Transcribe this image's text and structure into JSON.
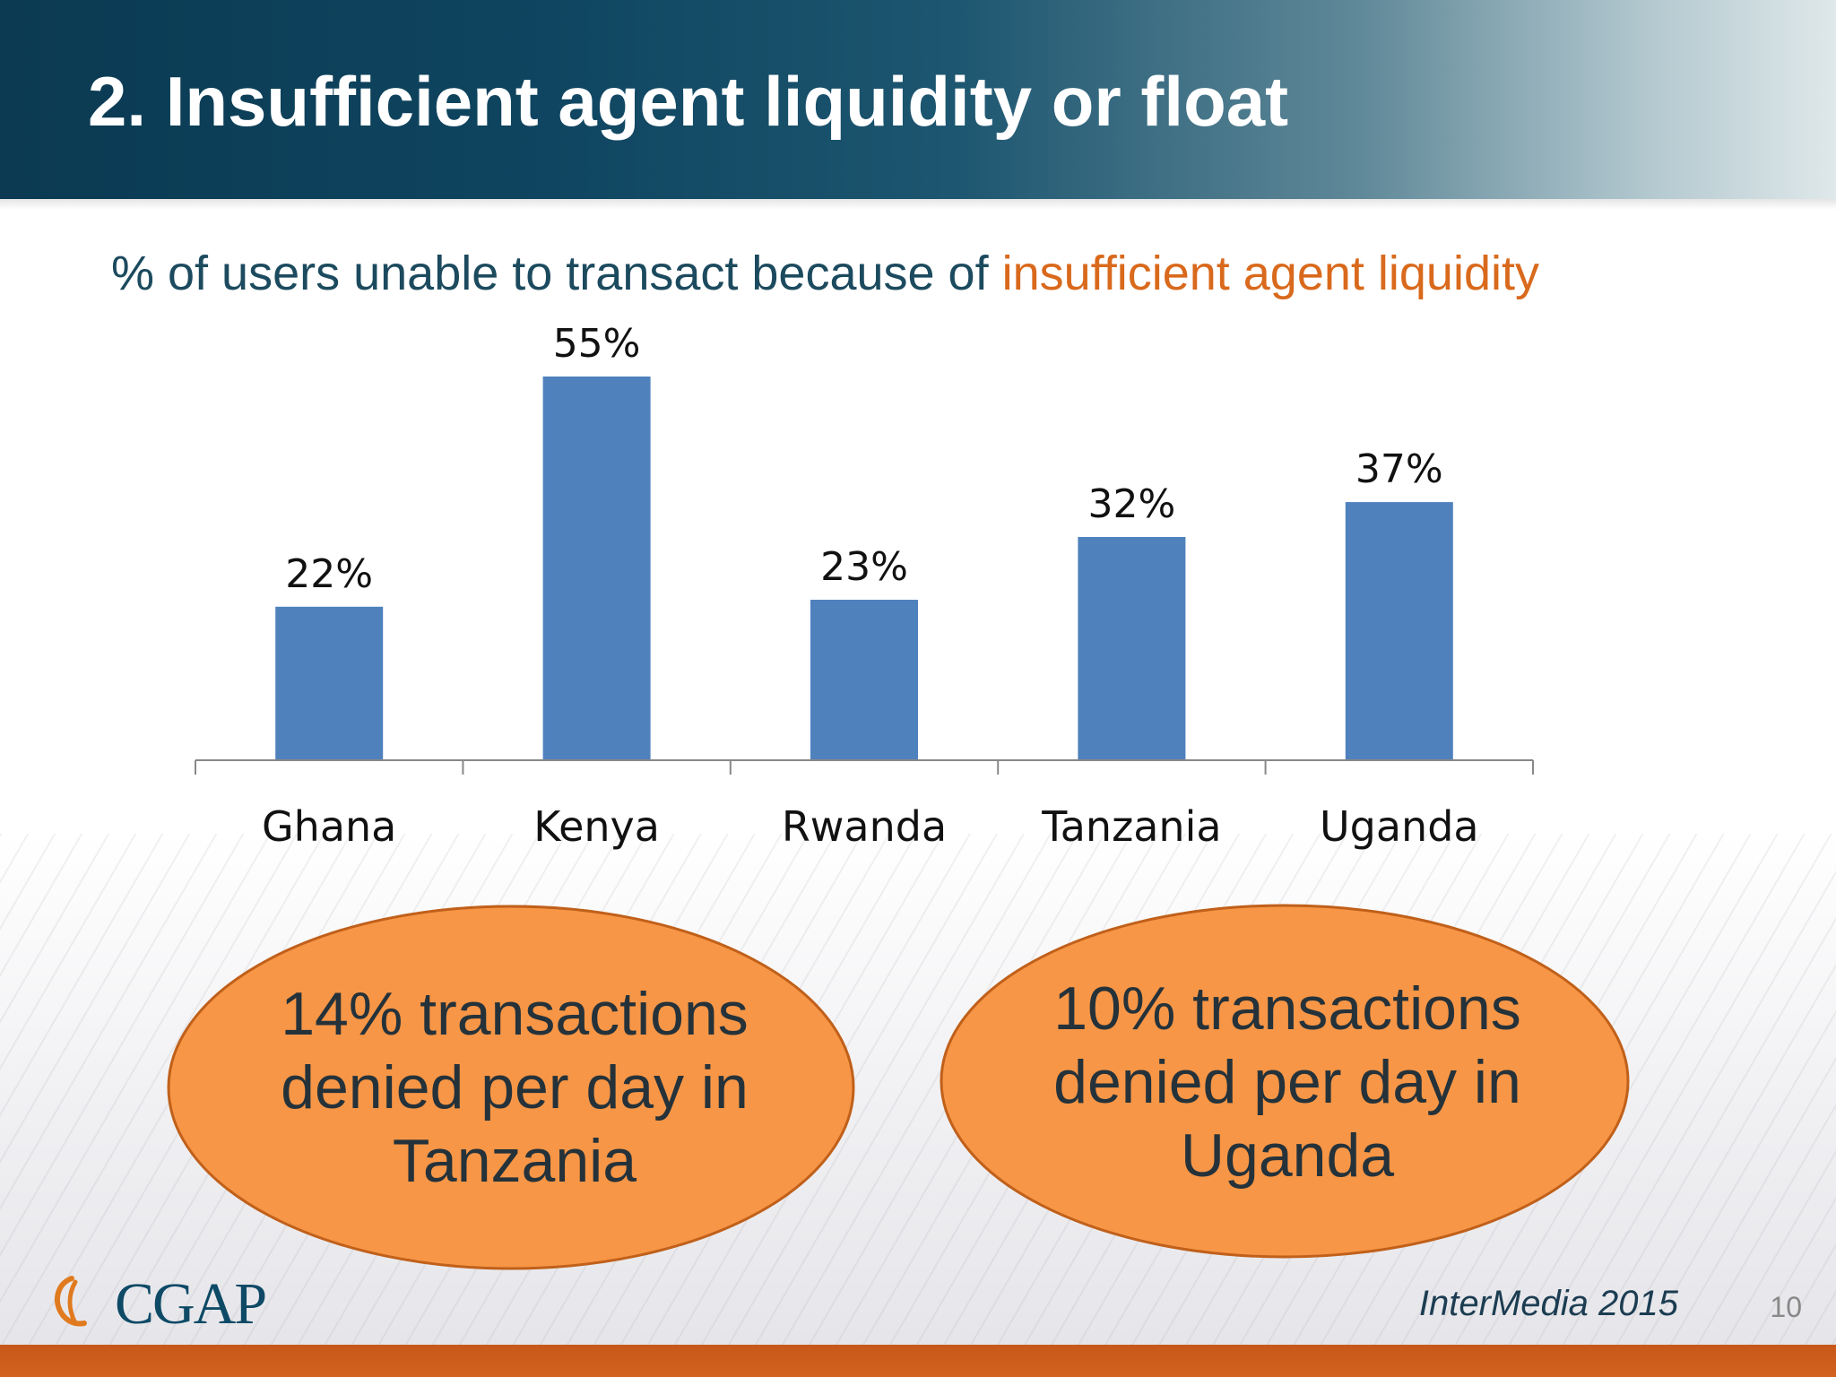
{
  "slide": {
    "title": "2. Insufficient agent liquidity or float",
    "subtitle_main": "% of users unable to transact because of ",
    "subtitle_accent": "insufficient agent liquidity",
    "source": "InterMedia 2015",
    "page_number": "10",
    "logo_text": "CGAP"
  },
  "colors": {
    "header_dark": "#0b3a52",
    "bar": "#4f81bd",
    "accent_orange": "#d9691c",
    "callout_fill": "#f79646",
    "callout_stroke": "#c0601a"
  },
  "chart_data": {
    "type": "bar",
    "categories": [
      "Ghana",
      "Kenya",
      "Rwanda",
      "Tanzania",
      "Uganda"
    ],
    "values": [
      22,
      55,
      23,
      32,
      37
    ],
    "data_labels": [
      "22%",
      "55%",
      "23%",
      "32%",
      "37%"
    ],
    "title": "",
    "xlabel": "",
    "ylabel": "",
    "ylim": [
      0,
      55
    ],
    "grid": false,
    "legend": "none"
  },
  "callouts": [
    {
      "lines": [
        "14% transactions",
        "denied per day in",
        "Tanzania"
      ]
    },
    {
      "lines": [
        "10% transactions",
        "denied per day in",
        "Uganda"
      ]
    }
  ]
}
